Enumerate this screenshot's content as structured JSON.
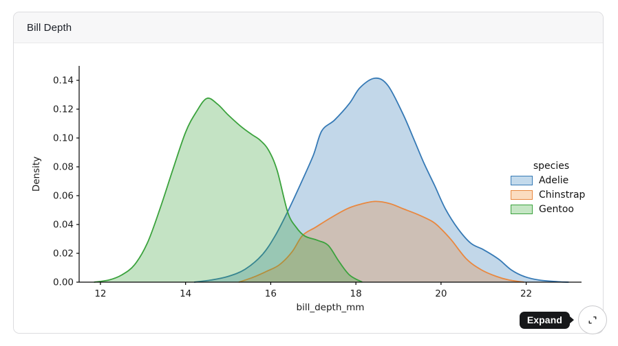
{
  "card": {
    "title": "Bill Depth"
  },
  "expand_control": {
    "tooltip_label": "Expand",
    "icon": "expand-icon"
  },
  "chart_data": {
    "type": "area",
    "subtype": "kde-density",
    "title": "Bill Depth",
    "xlabel": "bill_depth_mm",
    "ylabel": "Density",
    "xlim": [
      11.5,
      23.3
    ],
    "ylim": [
      0,
      0.15
    ],
    "x_ticks": [
      12,
      14,
      16,
      18,
      20,
      22
    ],
    "x_tick_labels": [
      "12",
      "14",
      "16",
      "18",
      "20",
      "22"
    ],
    "y_ticks": [
      0.0,
      0.02,
      0.04,
      0.06,
      0.08,
      0.1,
      0.12,
      0.14
    ],
    "y_tick_labels": [
      "0.00",
      "0.02",
      "0.04",
      "0.06",
      "0.08",
      "0.10",
      "0.12",
      "0.14"
    ],
    "grid": false,
    "legend": {
      "title": "species",
      "position": "center-right"
    },
    "fill_opacity": 0.3,
    "series": [
      {
        "name": "Adelie",
        "line_color": "#3579b5",
        "swatch_fill": "#c3daec",
        "points": [
          [
            14.2,
            0
          ],
          [
            14.6,
            0.0015
          ],
          [
            15.0,
            0.004
          ],
          [
            15.4,
            0.009
          ],
          [
            15.8,
            0.019
          ],
          [
            16.1,
            0.032
          ],
          [
            16.4,
            0.049
          ],
          [
            16.7,
            0.068
          ],
          [
            17.0,
            0.088
          ],
          [
            17.2,
            0.105
          ],
          [
            17.5,
            0.1125
          ],
          [
            17.85,
            0.124
          ],
          [
            18.1,
            0.135
          ],
          [
            18.45,
            0.1415
          ],
          [
            18.75,
            0.1365
          ],
          [
            19.1,
            0.117
          ],
          [
            19.35,
            0.1
          ],
          [
            19.6,
            0.0825
          ],
          [
            19.85,
            0.067
          ],
          [
            20.1,
            0.051
          ],
          [
            20.4,
            0.037
          ],
          [
            20.7,
            0.027
          ],
          [
            21.0,
            0.0225
          ],
          [
            21.35,
            0.016
          ],
          [
            21.65,
            0.0085
          ],
          [
            21.95,
            0.004
          ],
          [
            22.3,
            0.0015
          ],
          [
            22.75,
            0.0003
          ],
          [
            23.0,
            0
          ]
        ]
      },
      {
        "name": "Chinstrap",
        "line_color": "#e9873e",
        "swatch_fill": "#fbdcc0",
        "points": [
          [
            15.25,
            0
          ],
          [
            15.6,
            0.0035
          ],
          [
            15.9,
            0.0075
          ],
          [
            16.2,
            0.012
          ],
          [
            16.5,
            0.021
          ],
          [
            16.75,
            0.0325
          ],
          [
            17.05,
            0.038
          ],
          [
            17.4,
            0.0445
          ],
          [
            17.8,
            0.051
          ],
          [
            18.1,
            0.054
          ],
          [
            18.45,
            0.056
          ],
          [
            18.8,
            0.0545
          ],
          [
            19.1,
            0.051
          ],
          [
            19.45,
            0.047
          ],
          [
            19.8,
            0.042
          ],
          [
            20.0,
            0.037
          ],
          [
            20.25,
            0.029
          ],
          [
            20.6,
            0.016
          ],
          [
            20.95,
            0.0085
          ],
          [
            21.3,
            0.004
          ],
          [
            21.6,
            0.0015
          ],
          [
            21.95,
            0
          ]
        ]
      },
      {
        "name": "Gentoo",
        "line_color": "#3aa23c",
        "swatch_fill": "#c5e6c4",
        "points": [
          [
            11.85,
            0
          ],
          [
            12.2,
            0.0015
          ],
          [
            12.5,
            0.005
          ],
          [
            12.8,
            0.012
          ],
          [
            13.1,
            0.027
          ],
          [
            13.4,
            0.051
          ],
          [
            13.7,
            0.078
          ],
          [
            14.0,
            0.104
          ],
          [
            14.25,
            0.118
          ],
          [
            14.5,
            0.1275
          ],
          [
            14.75,
            0.1235
          ],
          [
            15.0,
            0.116
          ],
          [
            15.3,
            0.108
          ],
          [
            15.55,
            0.1025
          ],
          [
            15.75,
            0.0985
          ],
          [
            15.95,
            0.0915
          ],
          [
            16.15,
            0.0775
          ],
          [
            16.4,
            0.0485
          ],
          [
            16.6,
            0.038
          ],
          [
            16.8,
            0.032
          ],
          [
            17.1,
            0.029
          ],
          [
            17.35,
            0.0255
          ],
          [
            17.6,
            0.0145
          ],
          [
            17.85,
            0.005
          ],
          [
            18.15,
            0
          ]
        ]
      }
    ]
  }
}
